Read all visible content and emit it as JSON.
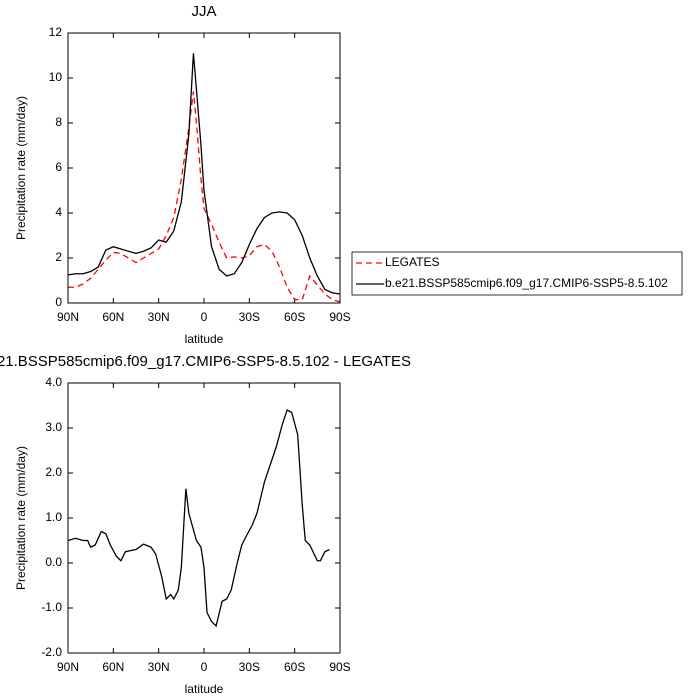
{
  "chart_data": [
    {
      "type": "line",
      "title": "JJA",
      "xlabel": "latitude",
      "ylabel": "Precipitation rate (mm/day)",
      "xlim": [
        90,
        -90
      ],
      "ylim": [
        0,
        12
      ],
      "xticks": [
        {
          "value": 90,
          "label": "90N"
        },
        {
          "value": 60,
          "label": "60N"
        },
        {
          "value": 30,
          "label": "30N"
        },
        0,
        {
          "value": -30,
          "label": "30S"
        },
        {
          "value": -60,
          "label": "60S"
        },
        {
          "value": -90,
          "label": "90S"
        }
      ],
      "yticks": [
        0,
        2,
        4,
        6,
        8,
        10,
        12
      ],
      "legend": "right",
      "x": [
        90,
        85,
        80,
        75,
        70,
        65,
        60,
        55,
        50,
        45,
        40,
        35,
        30,
        25,
        20,
        15,
        10,
        7,
        5,
        2,
        0,
        -5,
        -10,
        -15,
        -20,
        -25,
        -30,
        -35,
        -40,
        -45,
        -50,
        -55,
        -60,
        -65,
        -70,
        -75,
        -80,
        -85,
        -90
      ],
      "series": [
        {
          "name": "LEGATES",
          "color": "#ff0000",
          "dashed": true,
          "values": [
            0.7,
            0.7,
            0.85,
            1.1,
            1.5,
            1.9,
            2.25,
            2.2,
            2.0,
            1.8,
            2.0,
            2.2,
            2.4,
            3.0,
            3.8,
            5.5,
            7.8,
            9.4,
            8,
            5.5,
            4.2,
            3.5,
            2.7,
            2.0,
            2.05,
            2.0,
            2.1,
            2.5,
            2.6,
            2.3,
            1.6,
            0.7,
            0.15,
            0.15,
            1.2,
            0.8,
            0.4,
            0.15,
            0.05
          ]
        },
        {
          "name": "b.e21.BSSP585cmip6.f09_g17.CMIP6-SSP5-8.5.102",
          "color": "#000000",
          "dashed": false,
          "values": [
            1.25,
            1.3,
            1.3,
            1.4,
            1.6,
            2.35,
            2.5,
            2.4,
            2.3,
            2.2,
            2.3,
            2.45,
            2.8,
            2.7,
            3.2,
            4.5,
            7.5,
            11.1,
            9.5,
            7,
            5,
            2.5,
            1.5,
            1.2,
            1.3,
            1.8,
            2.6,
            3.3,
            3.8,
            4.0,
            4.05,
            4.0,
            3.7,
            3.0,
            2.0,
            1.2,
            0.6,
            0.45,
            0.4
          ]
        }
      ]
    },
    {
      "type": "line",
      "title": "21.BSSP585cmip6.f09_g17.CMIP6-SSP5-8.5.102 - LEGATES",
      "xlabel": "latitude",
      "ylabel": "Precipitation rate (mm/day)",
      "xlim": [
        90,
        -90
      ],
      "ylim": [
        -2,
        4
      ],
      "xticks": [
        {
          "value": 90,
          "label": "90N"
        },
        {
          "value": 60,
          "label": "60N"
        },
        {
          "value": 30,
          "label": "30N"
        },
        0,
        {
          "value": -30,
          "label": "30S"
        },
        {
          "value": -60,
          "label": "60S"
        },
        {
          "value": -90,
          "label": "90S"
        }
      ],
      "yticks": [
        {
          "value": -2,
          "label": "-2.0"
        },
        {
          "value": -1,
          "label": "-1.0"
        },
        {
          "value": 0,
          "label": "0.0"
        },
        {
          "value": 1,
          "label": "1.0"
        },
        {
          "value": 2,
          "label": "2.0"
        },
        {
          "value": 3,
          "label": "3.0"
        },
        {
          "value": 4,
          "label": "4.0"
        }
      ],
      "x": [
        90,
        85,
        80,
        77,
        75,
        72,
        68,
        65,
        62,
        58,
        55,
        52,
        48,
        45,
        40,
        35,
        32,
        28,
        25,
        22,
        20,
        17,
        15,
        12,
        10,
        5,
        2,
        0,
        -2,
        -5,
        -8,
        -12,
        -15,
        -18,
        -22,
        -25,
        -28,
        -32,
        -35,
        -40,
        -45,
        -48,
        -52,
        -55,
        -58,
        -62,
        -65,
        -67,
        -70,
        -75,
        -77,
        -80,
        -83
      ],
      "series": [
        {
          "color": "#000000",
          "dashed": false,
          "values": [
            0.5,
            0.55,
            0.5,
            0.5,
            0.35,
            0.4,
            0.7,
            0.65,
            0.4,
            0.15,
            0.05,
            0.25,
            0.28,
            0.3,
            0.42,
            0.35,
            0.2,
            -0.3,
            -0.8,
            -0.7,
            -0.8,
            -0.6,
            -0.1,
            1.65,
            1.1,
            0.5,
            0.35,
            -0.1,
            -1.1,
            -1.3,
            -1.4,
            -0.85,
            -0.8,
            -0.6,
            0.0,
            0.4,
            0.6,
            0.85,
            1.1,
            1.8,
            2.3,
            2.6,
            3.1,
            3.4,
            3.35,
            2.85,
            1.3,
            0.5,
            0.4,
            0.05,
            0.05,
            0.25,
            0.3
          ]
        }
      ]
    }
  ]
}
